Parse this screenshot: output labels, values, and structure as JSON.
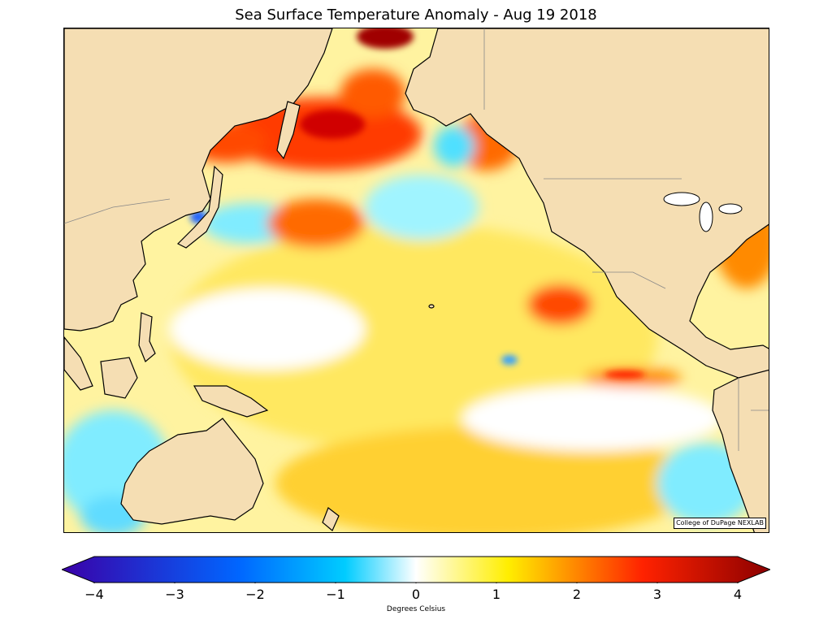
{
  "title": "Sea Surface Temperature Anomaly - Aug 19 2018",
  "credit": "College of DuPage NEXLAB",
  "colorbar": {
    "label": "Degrees Celsius",
    "min": -4,
    "max": 4,
    "ticks": [
      "−4",
      "−3",
      "−2",
      "−1",
      "0",
      "1",
      "2",
      "3",
      "4"
    ],
    "extend": "both",
    "colors": {
      "deep_negative": "#3a00a8",
      "negative": "#0066ff",
      "cool": "#00ccff",
      "neutral": "#ffffff",
      "warm": "#ffee00",
      "hot": "#ff2200",
      "deep_positive": "#8b0000"
    }
  },
  "map": {
    "region": "Pacific Ocean",
    "land_color": "#f5deb3",
    "coastline_color": "#000000",
    "border_color": "#888888"
  }
}
